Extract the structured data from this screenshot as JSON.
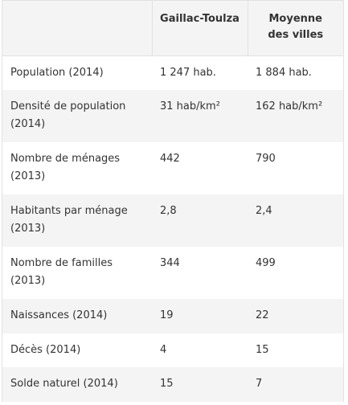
{
  "table": {
    "headers": [
      "",
      "Gaillac-Toulza",
      "Moyenne des villes"
    ],
    "header_lines": {
      "col2": [
        "Gaillac-Toulza"
      ],
      "col3": [
        "Moyenne",
        "des villes"
      ]
    },
    "rows": [
      {
        "label": "Population (2014)",
        "gaillac": "1 247 hab.",
        "moyenne": "1 884 hab."
      },
      {
        "label": "Densité de population (2014)",
        "gaillac": "31 hab/km²",
        "moyenne": "162 hab/km²"
      },
      {
        "label": "Nombre de ménages (2013)",
        "gaillac": "442",
        "moyenne": "790"
      },
      {
        "label": "Habitants par ménage (2013)",
        "gaillac": "2,8",
        "moyenne": "2,4"
      },
      {
        "label": "Nombre de familles (2013)",
        "gaillac": "344",
        "moyenne": "499"
      },
      {
        "label": "Naissances (2014)",
        "gaillac": "19",
        "moyenne": "22"
      },
      {
        "label": "Décès (2014)",
        "gaillac": "4",
        "moyenne": "15"
      },
      {
        "label": "Solde naturel (2014)",
        "gaillac": "15",
        "moyenne": "7"
      }
    ]
  }
}
